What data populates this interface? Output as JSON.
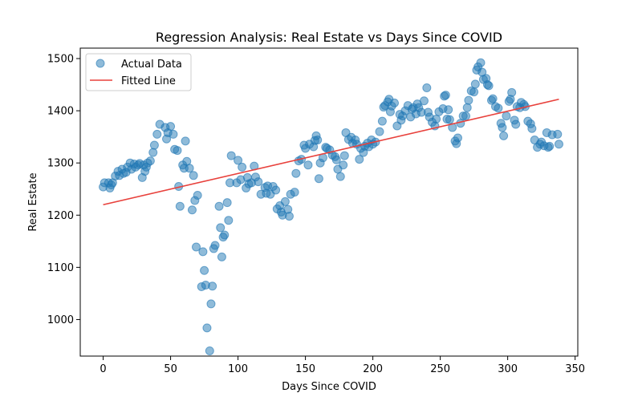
{
  "chart_data": {
    "type": "scatter",
    "title": "Regression Analysis: Real Estate vs Days Since COVID",
    "xlabel": "Days Since COVID",
    "ylabel": "Real Estate",
    "xlim": [
      -17,
      352
    ],
    "ylim": [
      930,
      1520
    ],
    "xticks": [
      0,
      50,
      100,
      150,
      200,
      250,
      300,
      350
    ],
    "yticks": [
      1000,
      1100,
      1200,
      1300,
      1400,
      1500
    ],
    "grid": false,
    "legend_position": "top-left",
    "colors": {
      "points": "#1f77b4",
      "line": "#e8413c"
    },
    "series": [
      {
        "name": "Actual Data",
        "kind": "scatter",
        "points": [
          [
            0,
            1254
          ],
          [
            1,
            1262
          ],
          [
            4,
            1262
          ],
          [
            5,
            1252
          ],
          [
            6,
            1258
          ],
          [
            7,
            1262
          ],
          [
            9,
            1275
          ],
          [
            11,
            1284
          ],
          [
            12,
            1276
          ],
          [
            14,
            1288
          ],
          [
            15,
            1280
          ],
          [
            17,
            1282
          ],
          [
            18,
            1292
          ],
          [
            20,
            1300
          ],
          [
            21,
            1288
          ],
          [
            23,
            1298
          ],
          [
            24,
            1292
          ],
          [
            26,
            1296
          ],
          [
            27,
            1299
          ],
          [
            29,
            1272
          ],
          [
            30,
            1296
          ],
          [
            31,
            1284
          ],
          [
            32,
            1292
          ],
          [
            33,
            1300
          ],
          [
            35,
            1304
          ],
          [
            37,
            1320
          ],
          [
            38,
            1334
          ],
          [
            40,
            1355
          ],
          [
            42,
            1374
          ],
          [
            46,
            1368
          ],
          [
            47,
            1346
          ],
          [
            48,
            1358
          ],
          [
            50,
            1370
          ],
          [
            52,
            1355
          ],
          [
            53,
            1326
          ],
          [
            55,
            1324
          ],
          [
            56,
            1255
          ],
          [
            57,
            1217
          ],
          [
            59,
            1296
          ],
          [
            60,
            1290
          ],
          [
            61,
            1342
          ],
          [
            62,
            1303
          ],
          [
            64,
            1290
          ],
          [
            66,
            1210
          ],
          [
            67,
            1276
          ],
          [
            68,
            1228
          ],
          [
            69,
            1139
          ],
          [
            70,
            1238
          ],
          [
            73,
            1063
          ],
          [
            74,
            1130
          ],
          [
            75,
            1094
          ],
          [
            76,
            1066
          ],
          [
            77,
            984
          ],
          [
            79,
            940
          ],
          [
            80,
            1030
          ],
          [
            81,
            1064
          ],
          [
            82,
            1136
          ],
          [
            83,
            1142
          ],
          [
            86,
            1217
          ],
          [
            87,
            1176
          ],
          [
            88,
            1120
          ],
          [
            89,
            1158
          ],
          [
            90,
            1162
          ],
          [
            92,
            1224
          ],
          [
            93,
            1190
          ],
          [
            94,
            1262
          ],
          [
            95,
            1314
          ],
          [
            99,
            1262
          ],
          [
            100,
            1305
          ],
          [
            102,
            1268
          ],
          [
            103,
            1292
          ],
          [
            106,
            1252
          ],
          [
            107,
            1272
          ],
          [
            108,
            1260
          ],
          [
            110,
            1262
          ],
          [
            112,
            1294
          ],
          [
            113,
            1273
          ],
          [
            115,
            1264
          ],
          [
            117,
            1240
          ],
          [
            120,
            1253
          ],
          [
            121,
            1242
          ],
          [
            122,
            1256
          ],
          [
            124,
            1240
          ],
          [
            126,
            1255
          ],
          [
            128,
            1248
          ],
          [
            129,
            1212
          ],
          [
            131,
            1218
          ],
          [
            132,
            1206
          ],
          [
            133,
            1200
          ],
          [
            135,
            1226
          ],
          [
            137,
            1211
          ],
          [
            138,
            1198
          ],
          [
            139,
            1240
          ],
          [
            142,
            1244
          ],
          [
            143,
            1280
          ],
          [
            145,
            1304
          ],
          [
            147,
            1307
          ],
          [
            149,
            1334
          ],
          [
            150,
            1328
          ],
          [
            152,
            1296
          ],
          [
            153,
            1336
          ],
          [
            156,
            1331
          ],
          [
            157,
            1343
          ],
          [
            158,
            1352
          ],
          [
            159,
            1344
          ],
          [
            160,
            1270
          ],
          [
            161,
            1300
          ],
          [
            163,
            1310
          ],
          [
            165,
            1330
          ],
          [
            166,
            1328
          ],
          [
            168,
            1325
          ],
          [
            170,
            1315
          ],
          [
            172,
            1312
          ],
          [
            173,
            1306
          ],
          [
            174,
            1288
          ],
          [
            176,
            1274
          ],
          [
            178,
            1296
          ],
          [
            179,
            1314
          ],
          [
            180,
            1358
          ],
          [
            182,
            1345
          ],
          [
            184,
            1349
          ],
          [
            185,
            1338
          ],
          [
            187,
            1344
          ],
          [
            188,
            1336
          ],
          [
            190,
            1307
          ],
          [
            191,
            1328
          ],
          [
            193,
            1320
          ],
          [
            194,
            1332
          ],
          [
            196,
            1338
          ],
          [
            197,
            1331
          ],
          [
            199,
            1344
          ],
          [
            200,
            1336
          ],
          [
            202,
            1340
          ],
          [
            205,
            1360
          ],
          [
            207,
            1380
          ],
          [
            208,
            1407
          ],
          [
            209,
            1410
          ],
          [
            211,
            1417
          ],
          [
            212,
            1422
          ],
          [
            213,
            1398
          ],
          [
            214,
            1409
          ],
          [
            216,
            1415
          ],
          [
            218,
            1371
          ],
          [
            220,
            1393
          ],
          [
            221,
            1382
          ],
          [
            222,
            1390
          ],
          [
            224,
            1400
          ],
          [
            226,
            1410
          ],
          [
            228,
            1388
          ],
          [
            229,
            1403
          ],
          [
            230,
            1406
          ],
          [
            232,
            1394
          ],
          [
            233,
            1413
          ],
          [
            234,
            1406
          ],
          [
            236,
            1397
          ],
          [
            238,
            1419
          ],
          [
            240,
            1444
          ],
          [
            241,
            1397
          ],
          [
            242,
            1388
          ],
          [
            244,
            1378
          ],
          [
            246,
            1371
          ],
          [
            247,
            1384
          ],
          [
            249,
            1398
          ],
          [
            252,
            1404
          ],
          [
            253,
            1428
          ],
          [
            254,
            1430
          ],
          [
            255,
            1384
          ],
          [
            256,
            1402
          ],
          [
            257,
            1383
          ],
          [
            259,
            1368
          ],
          [
            261,
            1342
          ],
          [
            262,
            1337
          ],
          [
            263,
            1348
          ],
          [
            265,
            1376
          ],
          [
            267,
            1390
          ],
          [
            269,
            1390
          ],
          [
            270,
            1406
          ],
          [
            271,
            1420
          ],
          [
            273,
            1438
          ],
          [
            275,
            1436
          ],
          [
            276,
            1451
          ],
          [
            277,
            1478
          ],
          [
            278,
            1484
          ],
          [
            280,
            1492
          ],
          [
            281,
            1474
          ],
          [
            282,
            1460
          ],
          [
            284,
            1462
          ],
          [
            285,
            1450
          ],
          [
            286,
            1448
          ],
          [
            288,
            1420
          ],
          [
            289,
            1423
          ],
          [
            291,
            1408
          ],
          [
            293,
            1405
          ],
          [
            295,
            1376
          ],
          [
            296,
            1368
          ],
          [
            297,
            1352
          ],
          [
            299,
            1390
          ],
          [
            301,
            1418
          ],
          [
            302,
            1422
          ],
          [
            303,
            1435
          ],
          [
            305,
            1382
          ],
          [
            306,
            1374
          ],
          [
            307,
            1408
          ],
          [
            309,
            1406
          ],
          [
            310,
            1416
          ],
          [
            312,
            1412
          ],
          [
            313,
            1408
          ],
          [
            315,
            1380
          ],
          [
            317,
            1375
          ],
          [
            318,
            1366
          ],
          [
            320,
            1344
          ],
          [
            322,
            1330
          ],
          [
            324,
            1336
          ],
          [
            325,
            1340
          ],
          [
            327,
            1333
          ],
          [
            329,
            1358
          ],
          [
            330,
            1330
          ],
          [
            331,
            1332
          ],
          [
            333,
            1354
          ],
          [
            337,
            1355
          ],
          [
            338,
            1336
          ]
        ]
      },
      {
        "name": "Fitted Line",
        "kind": "line",
        "points": [
          [
            0,
            1220
          ],
          [
            338,
            1422
          ]
        ]
      }
    ]
  }
}
